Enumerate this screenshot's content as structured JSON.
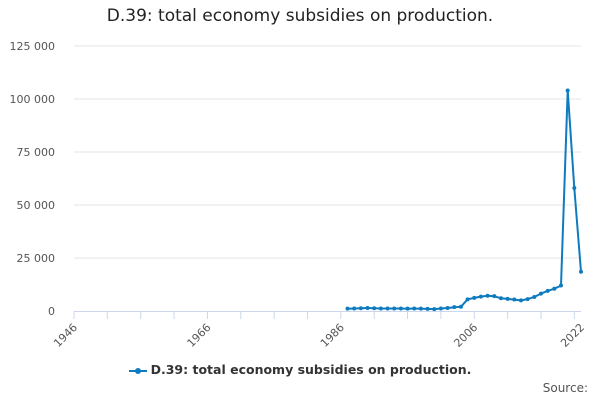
{
  "chart_data": {
    "type": "line",
    "title": "D.39: total economy subsidies on production.",
    "xlabel": "",
    "ylabel": "",
    "xlim": [
      1946,
      2022
    ],
    "ylim": [
      0,
      125000
    ],
    "x_tick_labels": [
      "1946",
      "1966",
      "1986",
      "2006",
      "2022"
    ],
    "x_ticks": [
      1946,
      1966,
      1986,
      2006,
      2022
    ],
    "y_tick_labels": [
      "0",
      "25 000",
      "50 000",
      "75 000",
      "100 000",
      "125 000"
    ],
    "y_ticks": [
      0,
      25000,
      50000,
      75000,
      100000,
      125000
    ],
    "grid": "horizontal",
    "legend_position": "bottom",
    "series": [
      {
        "name": "D.39: total economy subsidies on production.",
        "color": "#0e7bbf",
        "x": [
          1987,
          1988,
          1989,
          1990,
          1991,
          1992,
          1993,
          1994,
          1995,
          1996,
          1997,
          1998,
          1999,
          2000,
          2001,
          2002,
          2003,
          2004,
          2005,
          2006,
          2007,
          2008,
          2009,
          2010,
          2011,
          2012,
          2013,
          2014,
          2015,
          2016,
          2017,
          2018,
          2019,
          2020,
          2021,
          2022
        ],
        "values": [
          1100,
          1200,
          1300,
          1400,
          1300,
          1200,
          1200,
          1200,
          1200,
          1100,
          1200,
          1100,
          1000,
          900,
          1200,
          1400,
          1800,
          2000,
          5500,
          6200,
          6800,
          7200,
          7000,
          6000,
          5700,
          5400,
          5000,
          5600,
          6600,
          8200,
          9500,
          10500,
          12000,
          104000,
          58000,
          18500
        ]
      }
    ]
  },
  "legend_label": "D.39: total economy subsidies on production.",
  "credits": "Source:"
}
